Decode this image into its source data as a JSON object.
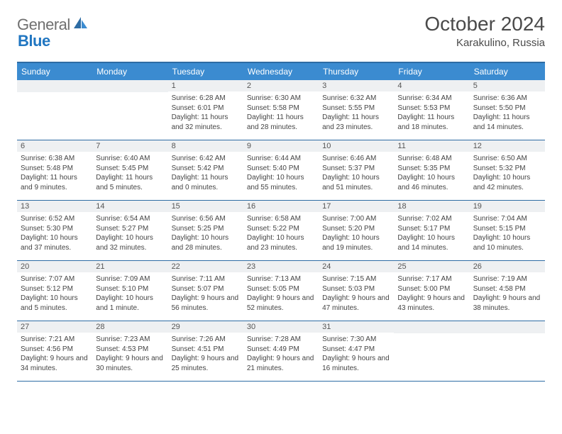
{
  "logo": {
    "text1": "General",
    "text2": "Blue"
  },
  "title": "October 2024",
  "location": "Karakulino, Russia",
  "day_names": [
    "Sunday",
    "Monday",
    "Tuesday",
    "Wednesday",
    "Thursday",
    "Friday",
    "Saturday"
  ],
  "colors": {
    "header_bg": "#3b8bd0",
    "border": "#2e6ca4",
    "daynum_bg": "#eef0f2",
    "logo_gray": "#6f6f6f",
    "logo_blue": "#2176c1"
  },
  "weeks": [
    [
      {
        "n": "",
        "sunrise": "",
        "sunset": "",
        "daylight": ""
      },
      {
        "n": "",
        "sunrise": "",
        "sunset": "",
        "daylight": ""
      },
      {
        "n": "1",
        "sunrise": "Sunrise: 6:28 AM",
        "sunset": "Sunset: 6:01 PM",
        "daylight": "Daylight: 11 hours and 32 minutes."
      },
      {
        "n": "2",
        "sunrise": "Sunrise: 6:30 AM",
        "sunset": "Sunset: 5:58 PM",
        "daylight": "Daylight: 11 hours and 28 minutes."
      },
      {
        "n": "3",
        "sunrise": "Sunrise: 6:32 AM",
        "sunset": "Sunset: 5:55 PM",
        "daylight": "Daylight: 11 hours and 23 minutes."
      },
      {
        "n": "4",
        "sunrise": "Sunrise: 6:34 AM",
        "sunset": "Sunset: 5:53 PM",
        "daylight": "Daylight: 11 hours and 18 minutes."
      },
      {
        "n": "5",
        "sunrise": "Sunrise: 6:36 AM",
        "sunset": "Sunset: 5:50 PM",
        "daylight": "Daylight: 11 hours and 14 minutes."
      }
    ],
    [
      {
        "n": "6",
        "sunrise": "Sunrise: 6:38 AM",
        "sunset": "Sunset: 5:48 PM",
        "daylight": "Daylight: 11 hours and 9 minutes."
      },
      {
        "n": "7",
        "sunrise": "Sunrise: 6:40 AM",
        "sunset": "Sunset: 5:45 PM",
        "daylight": "Daylight: 11 hours and 5 minutes."
      },
      {
        "n": "8",
        "sunrise": "Sunrise: 6:42 AM",
        "sunset": "Sunset: 5:42 PM",
        "daylight": "Daylight: 11 hours and 0 minutes."
      },
      {
        "n": "9",
        "sunrise": "Sunrise: 6:44 AM",
        "sunset": "Sunset: 5:40 PM",
        "daylight": "Daylight: 10 hours and 55 minutes."
      },
      {
        "n": "10",
        "sunrise": "Sunrise: 6:46 AM",
        "sunset": "Sunset: 5:37 PM",
        "daylight": "Daylight: 10 hours and 51 minutes."
      },
      {
        "n": "11",
        "sunrise": "Sunrise: 6:48 AM",
        "sunset": "Sunset: 5:35 PM",
        "daylight": "Daylight: 10 hours and 46 minutes."
      },
      {
        "n": "12",
        "sunrise": "Sunrise: 6:50 AM",
        "sunset": "Sunset: 5:32 PM",
        "daylight": "Daylight: 10 hours and 42 minutes."
      }
    ],
    [
      {
        "n": "13",
        "sunrise": "Sunrise: 6:52 AM",
        "sunset": "Sunset: 5:30 PM",
        "daylight": "Daylight: 10 hours and 37 minutes."
      },
      {
        "n": "14",
        "sunrise": "Sunrise: 6:54 AM",
        "sunset": "Sunset: 5:27 PM",
        "daylight": "Daylight: 10 hours and 32 minutes."
      },
      {
        "n": "15",
        "sunrise": "Sunrise: 6:56 AM",
        "sunset": "Sunset: 5:25 PM",
        "daylight": "Daylight: 10 hours and 28 minutes."
      },
      {
        "n": "16",
        "sunrise": "Sunrise: 6:58 AM",
        "sunset": "Sunset: 5:22 PM",
        "daylight": "Daylight: 10 hours and 23 minutes."
      },
      {
        "n": "17",
        "sunrise": "Sunrise: 7:00 AM",
        "sunset": "Sunset: 5:20 PM",
        "daylight": "Daylight: 10 hours and 19 minutes."
      },
      {
        "n": "18",
        "sunrise": "Sunrise: 7:02 AM",
        "sunset": "Sunset: 5:17 PM",
        "daylight": "Daylight: 10 hours and 14 minutes."
      },
      {
        "n": "19",
        "sunrise": "Sunrise: 7:04 AM",
        "sunset": "Sunset: 5:15 PM",
        "daylight": "Daylight: 10 hours and 10 minutes."
      }
    ],
    [
      {
        "n": "20",
        "sunrise": "Sunrise: 7:07 AM",
        "sunset": "Sunset: 5:12 PM",
        "daylight": "Daylight: 10 hours and 5 minutes."
      },
      {
        "n": "21",
        "sunrise": "Sunrise: 7:09 AM",
        "sunset": "Sunset: 5:10 PM",
        "daylight": "Daylight: 10 hours and 1 minute."
      },
      {
        "n": "22",
        "sunrise": "Sunrise: 7:11 AM",
        "sunset": "Sunset: 5:07 PM",
        "daylight": "Daylight: 9 hours and 56 minutes."
      },
      {
        "n": "23",
        "sunrise": "Sunrise: 7:13 AM",
        "sunset": "Sunset: 5:05 PM",
        "daylight": "Daylight: 9 hours and 52 minutes."
      },
      {
        "n": "24",
        "sunrise": "Sunrise: 7:15 AM",
        "sunset": "Sunset: 5:03 PM",
        "daylight": "Daylight: 9 hours and 47 minutes."
      },
      {
        "n": "25",
        "sunrise": "Sunrise: 7:17 AM",
        "sunset": "Sunset: 5:00 PM",
        "daylight": "Daylight: 9 hours and 43 minutes."
      },
      {
        "n": "26",
        "sunrise": "Sunrise: 7:19 AM",
        "sunset": "Sunset: 4:58 PM",
        "daylight": "Daylight: 9 hours and 38 minutes."
      }
    ],
    [
      {
        "n": "27",
        "sunrise": "Sunrise: 7:21 AM",
        "sunset": "Sunset: 4:56 PM",
        "daylight": "Daylight: 9 hours and 34 minutes."
      },
      {
        "n": "28",
        "sunrise": "Sunrise: 7:23 AM",
        "sunset": "Sunset: 4:53 PM",
        "daylight": "Daylight: 9 hours and 30 minutes."
      },
      {
        "n": "29",
        "sunrise": "Sunrise: 7:26 AM",
        "sunset": "Sunset: 4:51 PM",
        "daylight": "Daylight: 9 hours and 25 minutes."
      },
      {
        "n": "30",
        "sunrise": "Sunrise: 7:28 AM",
        "sunset": "Sunset: 4:49 PM",
        "daylight": "Daylight: 9 hours and 21 minutes."
      },
      {
        "n": "31",
        "sunrise": "Sunrise: 7:30 AM",
        "sunset": "Sunset: 4:47 PM",
        "daylight": "Daylight: 9 hours and 16 minutes."
      },
      {
        "n": "",
        "sunrise": "",
        "sunset": "",
        "daylight": ""
      },
      {
        "n": "",
        "sunrise": "",
        "sunset": "",
        "daylight": ""
      }
    ]
  ]
}
